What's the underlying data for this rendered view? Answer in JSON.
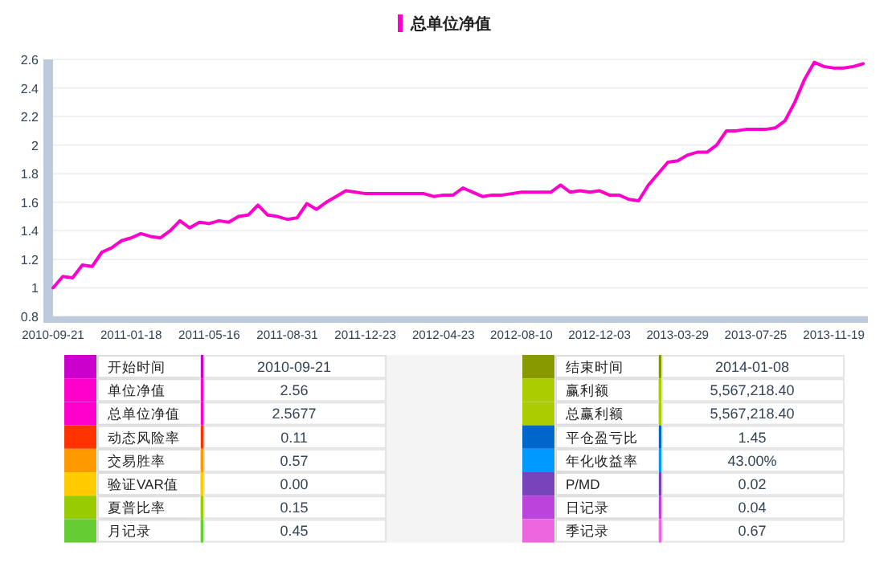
{
  "chart_data": [
    {
      "type": "line",
      "categories": [
        "2010-09-21",
        null,
        null,
        null,
        null,
        null,
        null,
        null,
        "2011-01-18",
        null,
        null,
        null,
        null,
        null,
        null,
        null,
        "2011-05-16",
        null,
        null,
        null,
        null,
        null,
        null,
        null,
        "2011-08-31",
        null,
        null,
        null,
        null,
        null,
        null,
        null,
        "2011-12-23",
        null,
        null,
        null,
        null,
        null,
        null,
        null,
        "2012-04-23",
        null,
        null,
        null,
        null,
        null,
        null,
        null,
        "2012-08-10",
        null,
        null,
        null,
        null,
        null,
        null,
        null,
        "2012-12-03",
        null,
        null,
        null,
        null,
        null,
        null,
        null,
        "2013-03-29",
        null,
        null,
        null,
        null,
        null,
        null,
        null,
        "2013-07-25",
        null,
        null,
        null,
        null,
        null,
        null,
        null,
        "2013-11-19",
        null,
        null,
        null
      ],
      "series": [
        {
          "name": "总单位净值",
          "color": "#ff00cc",
          "values": [
            1.0,
            1.08,
            1.07,
            1.16,
            1.15,
            1.25,
            1.28,
            1.33,
            1.35,
            1.38,
            1.36,
            1.35,
            1.4,
            1.47,
            1.42,
            1.46,
            1.45,
            1.47,
            1.46,
            1.5,
            1.51,
            1.58,
            1.51,
            1.5,
            1.48,
            1.49,
            1.59,
            1.55,
            1.6,
            1.64,
            1.68,
            1.67,
            1.66,
            1.66,
            1.66,
            1.66,
            1.66,
            1.66,
            1.66,
            1.64,
            1.65,
            1.65,
            1.7,
            1.67,
            1.64,
            1.65,
            1.65,
            1.66,
            1.67,
            1.67,
            1.67,
            1.67,
            1.72,
            1.67,
            1.68,
            1.67,
            1.68,
            1.65,
            1.65,
            1.62,
            1.61,
            1.72,
            1.8,
            1.88,
            1.89,
            1.93,
            1.95,
            1.95,
            2.0,
            2.1,
            2.1,
            2.11,
            2.11,
            2.11,
            2.12,
            2.17,
            2.3,
            2.46,
            2.58,
            2.55,
            2.54,
            2.54,
            2.55,
            2.57
          ]
        }
      ],
      "ylim": [
        0.8,
        2.6
      ],
      "yticks": [
        0.8,
        1,
        1.2,
        1.4,
        1.6,
        1.8,
        2,
        2.2,
        2.4,
        2.6
      ],
      "grid": "y",
      "legend": "top"
    },
    {
      "type": "other",
      "categories": [
        "开始时间",
        "单位净值",
        "总单位净值",
        "动态风险率",
        "交易胜率",
        "验证VAR值",
        "夏普比率",
        "月记录",
        "结束时间",
        "赢利额",
        "总赢利额",
        "平仓盈亏比",
        "年化收益率",
        "P/MD",
        "日记录",
        "季记录"
      ],
      "value_labels": [
        "2010-09-21",
        "2.56",
        "2.5677",
        "0.11",
        "0.57",
        "0.00",
        "0.15",
        "0.45",
        "2014-01-08",
        "5,567,218.40",
        "5,567,218.40",
        "1.45",
        "43.00%",
        "0.02",
        "0.04",
        "0.67"
      ],
      "colors": [
        "#cc00cc",
        "#ff00cc",
        "#ff00cc",
        "#ff3300",
        "#ff9900",
        "#ffcc00",
        "#99cc00",
        "#66cc33",
        "#889900",
        "#aacc00",
        "#aacc00",
        "#0066cc",
        "#0099ff",
        "#7744bb",
        "#bb44dd",
        "#ee66dd"
      ]
    }
  ]
}
